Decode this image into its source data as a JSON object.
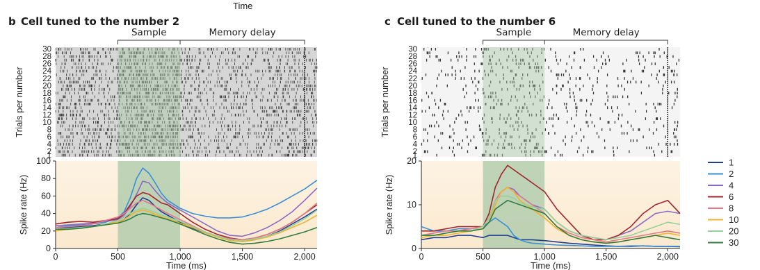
{
  "figure": {
    "top_label": "Time",
    "legend": {
      "position": "right"
    }
  },
  "chart_data": [
    {
      "panel_letter": "b",
      "title": "Cell tuned to the number 2",
      "phase_labels": {
        "sample": "Sample",
        "memory": "Memory delay"
      },
      "sample_window": [
        500,
        1000
      ],
      "memory_end": 2000,
      "raster": {
        "type": "raster",
        "ylabel": "Trials per number",
        "yticks": [
          1,
          2,
          4,
          6,
          8,
          10,
          12,
          14,
          16,
          18,
          20,
          22,
          24,
          26,
          28,
          30
        ]
      },
      "rate": {
        "type": "line",
        "xlabel": "Time (ms)",
        "ylabel": "Spike rate (Hz)",
        "xlim": [
          0,
          2100
        ],
        "ylim": [
          0,
          100
        ],
        "xticks": [
          0,
          500,
          1000,
          1500,
          2000
        ],
        "xtick_labels": [
          "0",
          "500",
          "1,000",
          "1,500",
          "2,000"
        ],
        "yticks": [
          0,
          20,
          40,
          60,
          80,
          100
        ],
        "ytick_labels": [
          "0",
          "20",
          "40",
          "60",
          "80",
          "100"
        ],
        "x": [
          0,
          100,
          200,
          300,
          400,
          500,
          550,
          600,
          650,
          700,
          750,
          800,
          850,
          900,
          1000,
          1100,
          1200,
          1300,
          1400,
          1500,
          1600,
          1700,
          1800,
          1900,
          2000,
          2100
        ],
        "series": [
          {
            "name": "1",
            "values": [
              24,
              24,
              25,
              26,
              28,
              30,
              33,
              40,
              50,
              58,
              55,
              48,
              42,
              38,
              30,
              23,
              18,
              14,
              10,
              8,
              10,
              14,
              20,
              28,
              36,
              45
            ]
          },
          {
            "name": "2",
            "values": [
              24,
              26,
              27,
              28,
              30,
              35,
              42,
              58,
              80,
              92,
              86,
              75,
              63,
              55,
              46,
              40,
              37,
              35,
              35,
              36,
              40,
              45,
              52,
              60,
              68,
              78
            ]
          },
          {
            "name": "4",
            "values": [
              26,
              27,
              28,
              29,
              31,
              33,
              38,
              48,
              62,
              77,
              75,
              66,
              58,
              52,
              44,
              36,
              28,
              20,
              15,
              14,
              18,
              24,
              32,
              42,
              55,
              69
            ]
          },
          {
            "name": "6",
            "values": [
              28,
              30,
              31,
              30,
              32,
              34,
              40,
              50,
              60,
              64,
              62,
              57,
              52,
              50,
              40,
              30,
              22,
              16,
              12,
              10,
              12,
              16,
              22,
              30,
              40,
              50
            ]
          },
          {
            "name": "8",
            "values": [
              24,
              25,
              26,
              28,
              32,
              36,
              40,
              46,
              52,
              55,
              52,
              48,
              44,
              40,
              33,
              26,
              19,
              14,
              11,
              10,
              12,
              16,
              22,
              30,
              40,
              52
            ]
          },
          {
            "name": "10",
            "values": [
              20,
              22,
              23,
              25,
              28,
              30,
              33,
              38,
              42,
              44,
              42,
              39,
              36,
              34,
              29,
              24,
              18,
              13,
              9,
              8,
              10,
              13,
              18,
              24,
              30,
              38
            ]
          },
          {
            "name": "20",
            "values": [
              22,
              23,
              24,
              25,
              28,
              32,
              36,
              40,
              44,
              46,
              44,
              41,
              38,
              36,
              31,
              25,
              19,
              14,
              10,
              9,
              11,
              14,
              19,
              26,
              34,
              44
            ]
          },
          {
            "name": "30",
            "values": [
              22,
              22,
              23,
              25,
              27,
              29,
              31,
              34,
              38,
              40,
              39,
              37,
              35,
              33,
              28,
              22,
              16,
              11,
              7,
              5,
              6,
              8,
              11,
              15,
              19,
              24
            ]
          }
        ]
      }
    },
    {
      "panel_letter": "c",
      "title": "Cell tuned to the number 6",
      "phase_labels": {
        "sample": "Sample",
        "memory": "Memory delay"
      },
      "sample_window": [
        500,
        1000
      ],
      "memory_end": 2000,
      "raster": {
        "type": "raster",
        "ylabel": "Trials per number",
        "yticks": [
          1,
          2,
          4,
          6,
          8,
          10,
          12,
          14,
          16,
          18,
          20,
          22,
          24,
          26,
          28,
          30
        ]
      },
      "rate": {
        "type": "line",
        "xlabel": "Time (ms)",
        "ylabel": "Spike rate (Hz)",
        "xlim": [
          0,
          2100
        ],
        "ylim": [
          0,
          20
        ],
        "xticks": [
          0,
          500,
          1000,
          1500,
          2000
        ],
        "xtick_labels": [
          "0",
          "500",
          "1,000",
          "1,500",
          "2,000"
        ],
        "yticks": [
          0,
          10,
          20
        ],
        "ytick_labels": [
          "0",
          "10",
          "20"
        ],
        "x": [
          0,
          100,
          200,
          300,
          400,
          500,
          550,
          600,
          650,
          700,
          750,
          800,
          850,
          900,
          1000,
          1100,
          1200,
          1300,
          1400,
          1500,
          1600,
          1700,
          1800,
          1900,
          2000,
          2100
        ],
        "series": [
          {
            "name": "1",
            "values": [
              2,
              2.5,
              2.5,
              3,
              3,
              2.5,
              3,
              3,
              3,
              3,
              2.5,
              2,
              2,
              2,
              1.8,
              1.5,
              1.2,
              1,
              0.8,
              0.6,
              0.5,
              0.5,
              0.6,
              0.5,
              0.5,
              0.4
            ]
          },
          {
            "name": "2",
            "values": [
              5,
              4,
              4,
              4.5,
              4.5,
              5,
              6,
              7,
              6,
              5,
              3,
              2,
              1.5,
              1.2,
              1,
              0.8,
              0.7,
              0.6,
              0.5,
              0.5,
              0.5,
              0.6,
              0.6,
              0.5,
              0.5,
              0.5
            ]
          },
          {
            "name": "4",
            "values": [
              3,
              3.5,
              4,
              4,
              4.5,
              5,
              7,
              11,
              13,
              14,
              13.5,
              12,
              11,
              10,
              9,
              6,
              4,
              3,
              2.5,
              2,
              3,
              4,
              6,
              8,
              8.5,
              8
            ]
          },
          {
            "name": "6",
            "values": [
              4,
              4,
              4.5,
              5,
              5,
              5,
              8,
              14,
              17,
              19,
              18,
              17,
              16,
              15,
              13,
              9,
              6,
              3,
              2,
              2,
              3,
              5,
              8,
              10,
              11,
              8
            ]
          },
          {
            "name": "8",
            "values": [
              3,
              3.5,
              4,
              4,
              4.5,
              5,
              7,
              11,
              13,
              14,
              13,
              12,
              11,
              10,
              8,
              5,
              3.5,
              2.5,
              2,
              1.5,
              2,
              2.5,
              3,
              3.5,
              4,
              3.5
            ]
          },
          {
            "name": "10",
            "values": [
              2.5,
              3,
              3,
              3.5,
              4,
              4.5,
              6,
              10,
              13,
              14,
              13,
              11,
              10,
              9,
              7,
              4.5,
              3,
              2,
              1.5,
              1.2,
              1.5,
              2,
              2.5,
              3,
              3.5,
              3
            ]
          },
          {
            "name": "20",
            "values": [
              3,
              3,
              3.5,
              4,
              4,
              5,
              7,
              11,
              12,
              12,
              11.5,
              10.5,
              10,
              9.5,
              9,
              6,
              4,
              3,
              2.5,
              2,
              2.5,
              3,
              4,
              5,
              6,
              5.5
            ]
          },
          {
            "name": "30",
            "values": [
              3,
              3,
              3.5,
              4,
              4,
              4.5,
              6,
              9,
              10,
              11,
              10.5,
              10,
              9.5,
              9,
              8,
              5,
              3,
              2,
              1.5,
              1.2,
              1.5,
              2,
              2.5,
              3,
              2.5,
              2
            ]
          }
        ]
      }
    }
  ],
  "series_colors": {
    "1": "#1f3f8f",
    "2": "#3a8fd8",
    "4": "#8a6bc4",
    "6": "#a3232c",
    "8": "#e07a8a",
    "10": "#f2b02e",
    "20": "#96cf9a",
    "30": "#2e7d3c"
  },
  "theme": {
    "sample_shade": "#a9c8a8",
    "background_tint": "#fdf1dc",
    "raster_background": "#e8e8e8"
  }
}
